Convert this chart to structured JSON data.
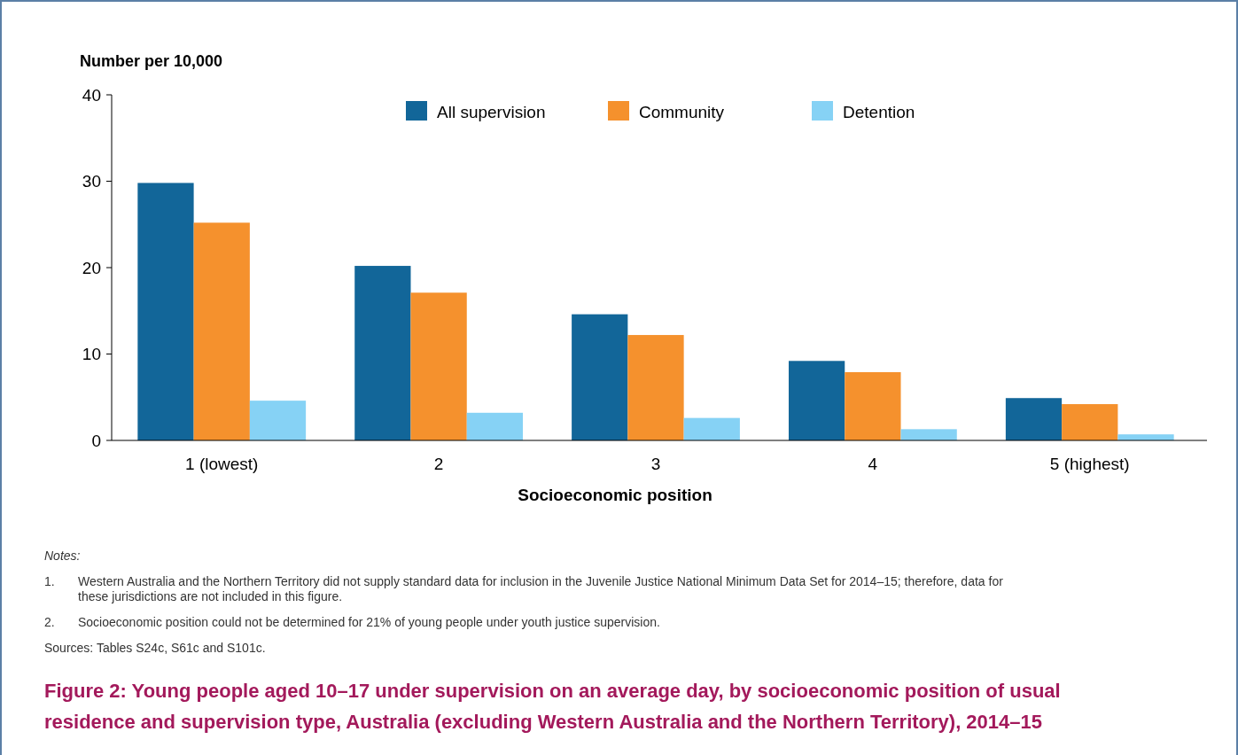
{
  "chart_data": {
    "type": "bar",
    "title": "Figure 2: Young people aged 10–17 under supervision on an average day, by socioeconomic position of usual residence and supervision type, Australia (excluding Western Australia and the Northern Territory), 2014–15",
    "ylabel": "Number per 10,000",
    "xlabel": "Socioeconomic position",
    "categories": [
      "1 (lowest)",
      "2",
      "3",
      "4",
      "5 (highest)"
    ],
    "series": [
      {
        "name": "All supervision",
        "color": "#126699",
        "values": [
          29.8,
          20.2,
          14.6,
          9.2,
          4.9
        ]
      },
      {
        "name": "Community",
        "color": "#f5912d",
        "values": [
          25.2,
          17.1,
          12.2,
          7.9,
          4.2
        ]
      },
      {
        "name": "Detention",
        "color": "#86d2f5",
        "values": [
          4.6,
          3.2,
          2.6,
          1.3,
          0.7
        ]
      }
    ],
    "ylim": [
      0,
      40
    ],
    "yticks": [
      0,
      10,
      20,
      30,
      40
    ],
    "grid": false,
    "legend": "top",
    "annotations": [
      "Notes:",
      "1. Western Australia and the Northern Territory did not supply standard data for inclusion in the Juvenile Justice National Minimum Data Set for 2014–15; therefore, data for these jurisdictions are not included in this figure.",
      "2. Socioeconomic position could not be determined for 21% of young people under youth justice supervision.",
      "Sources: Tables S24c, S61c and S101c."
    ]
  }
}
